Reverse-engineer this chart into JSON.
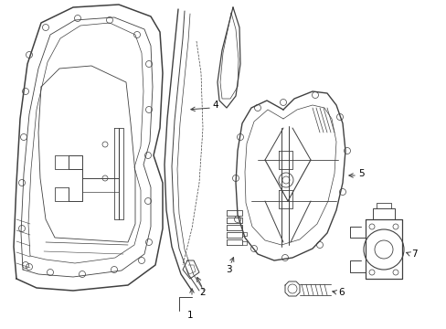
{
  "background_color": "#ffffff",
  "line_color": "#404040",
  "label_color": "#000000",
  "figsize": [
    4.89,
    3.6
  ],
  "dpi": 100,
  "label_fontsize": 7.5
}
